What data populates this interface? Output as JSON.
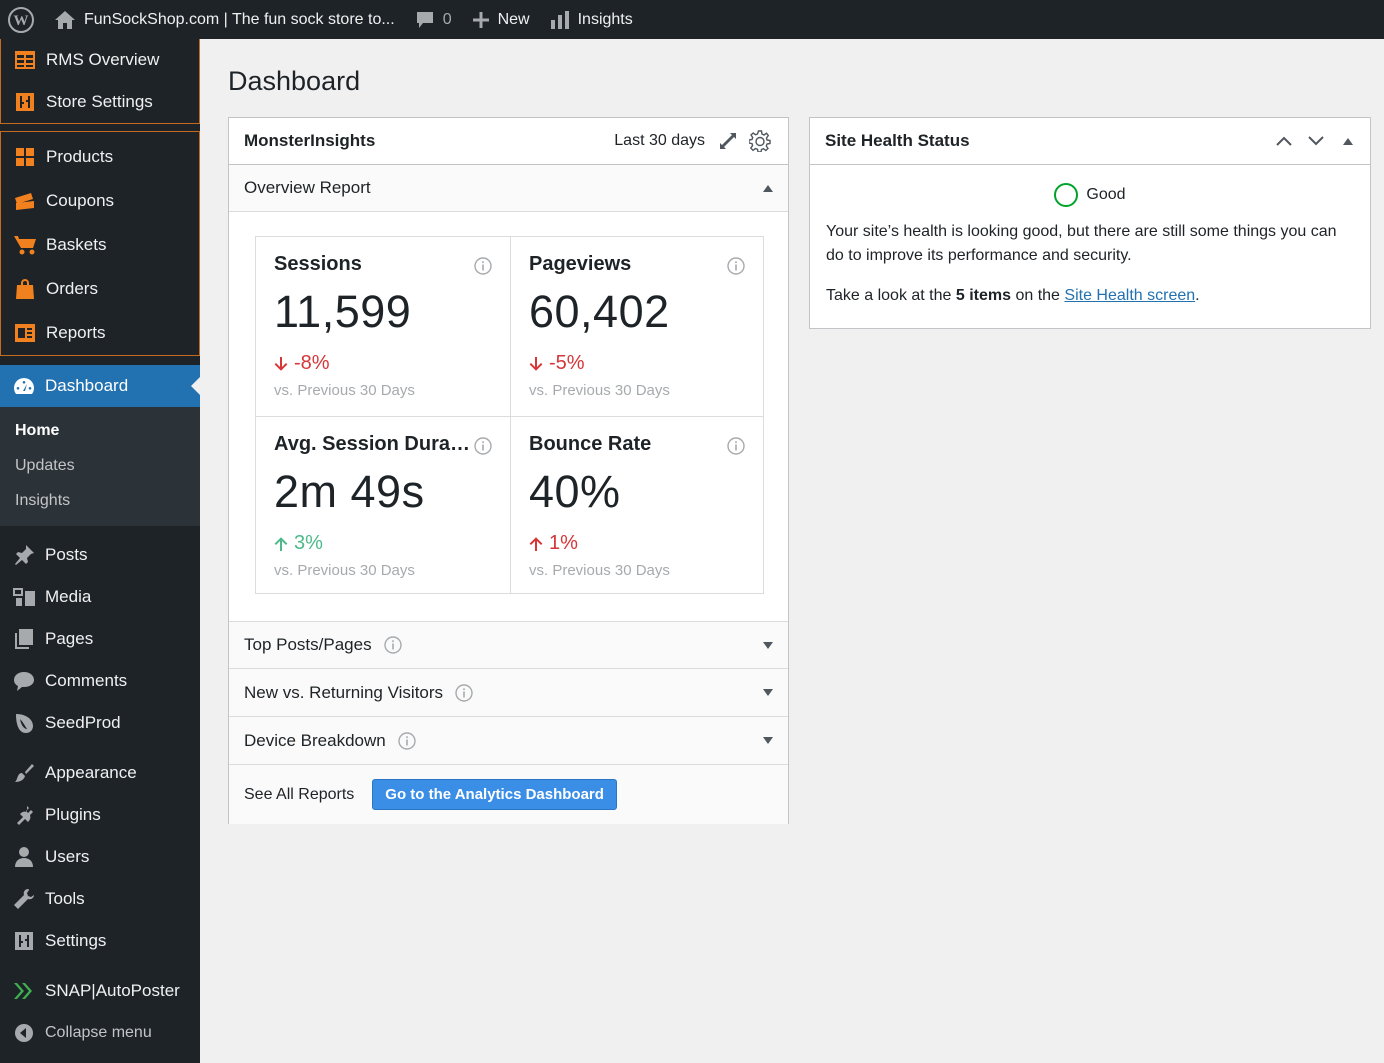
{
  "adminbar": {
    "site_title": "FunSockShop.com | The fun sock store to...",
    "comments_count": "0",
    "new_label": "New",
    "insights_label": "Insights"
  },
  "sidebar": {
    "rms_group_1": [
      {
        "label": "RMS Overview",
        "icon": "table-icon"
      },
      {
        "label": "Store Settings",
        "icon": "settings-sliders-icon"
      }
    ],
    "rms_group_2": [
      {
        "label": "Products",
        "icon": "grid-icon"
      },
      {
        "label": "Coupons",
        "icon": "coupon-icon"
      },
      {
        "label": "Baskets",
        "icon": "cart-icon"
      },
      {
        "label": "Orders",
        "icon": "bag-icon"
      },
      {
        "label": "Reports",
        "icon": "report-icon"
      }
    ],
    "current": {
      "label": "Dashboard",
      "icon": "dashboard-icon"
    },
    "submenu": [
      "Home",
      "Updates",
      "Insights"
    ],
    "group_a": [
      {
        "label": "Posts",
        "icon": "pin-icon"
      },
      {
        "label": "Media",
        "icon": "media-icon"
      },
      {
        "label": "Pages",
        "icon": "pages-icon"
      },
      {
        "label": "Comments",
        "icon": "comment-icon"
      },
      {
        "label": "SeedProd",
        "icon": "seedprod-icon"
      }
    ],
    "group_b": [
      {
        "label": "Appearance",
        "icon": "brush-icon"
      },
      {
        "label": "Plugins",
        "icon": "plugin-icon"
      },
      {
        "label": "Users",
        "icon": "user-icon"
      },
      {
        "label": "Tools",
        "icon": "wrench-icon"
      },
      {
        "label": "Settings",
        "icon": "settings-icon"
      }
    ],
    "snap": {
      "label": "SNAP|AutoPoster",
      "icon": "snap-icon"
    },
    "collapse": {
      "label": "Collapse menu",
      "icon": "collapse-icon"
    }
  },
  "page": {
    "title": "Dashboard"
  },
  "monsterinsights": {
    "title": "MonsterInsights",
    "period": "Last 30 days",
    "overview_label": "Overview Report",
    "metrics": [
      {
        "title": "Sessions",
        "value": "11,599",
        "change": "-8%",
        "compare": "vs. Previous 30 Days"
      },
      {
        "title": "Pageviews",
        "value": "60,402",
        "change": "-5%",
        "compare": "vs. Previous 30 Days"
      },
      {
        "title": "Avg. Session Duration",
        "value": "2m 49s",
        "change": "3%",
        "compare": "vs. Previous 30 Days"
      },
      {
        "title": "Bounce Rate",
        "value": "40%",
        "change": "1%",
        "compare": "vs. Previous 30 Days"
      }
    ],
    "sections": [
      "Top Posts/Pages",
      "New vs. Returning Visitors",
      "Device Breakdown"
    ],
    "see_all": "See All Reports",
    "button": "Go to the Analytics Dashboard"
  },
  "site_health": {
    "title": "Site Health Status",
    "status": "Good",
    "message": "Your site’s health is looking good, but there are still some things you can do to improve its performance and security.",
    "take_look_pre": "Take a look at the",
    "items_bold": "5 items",
    "on_the": "on the",
    "link": "Site Health screen",
    "period_end": "."
  },
  "colors": {
    "accent": "#2271b1",
    "orange": "#f0811e",
    "negative": "#d63638",
    "positive": "#4cb98a",
    "good": "#00a32a"
  }
}
